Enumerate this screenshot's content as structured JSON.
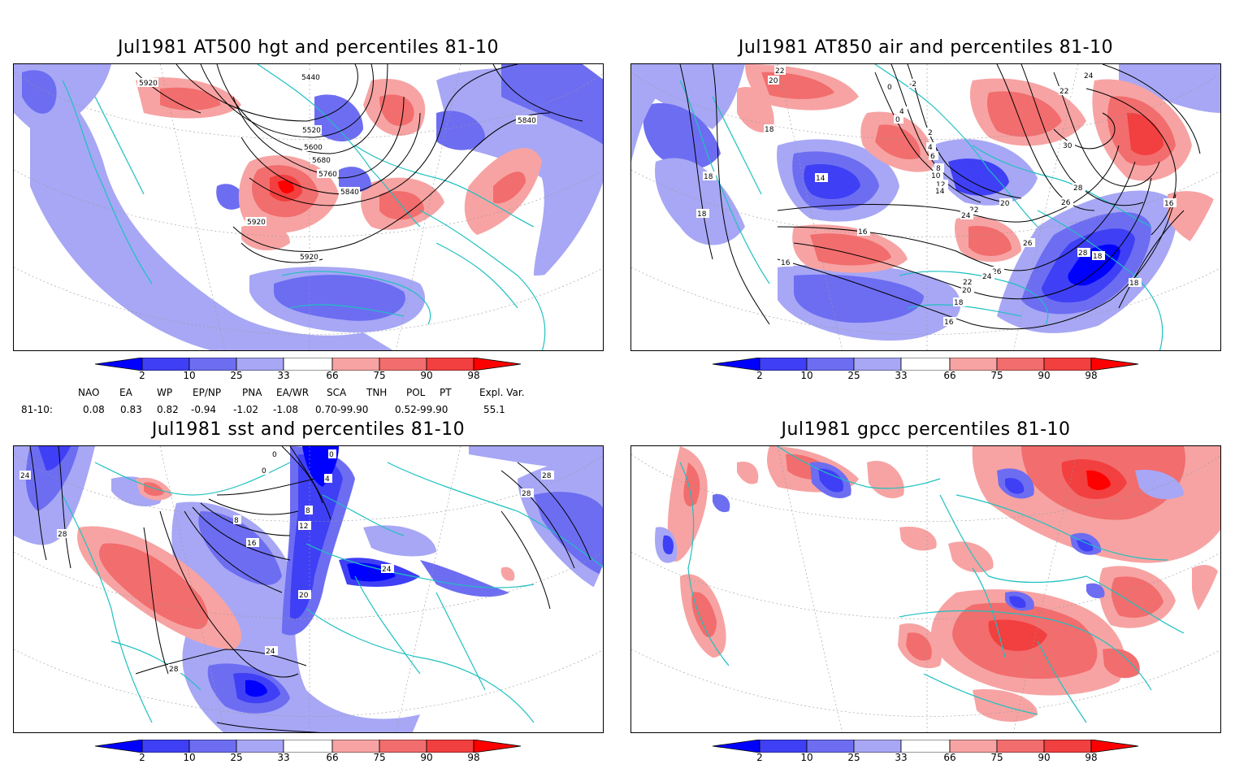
{
  "colors": {
    "blue_98": "#0000ff",
    "blue_90": "#3f3ff5",
    "blue_75": "#6d6df2",
    "blue_light": "#a7a7f5",
    "red_light": "#f7a3a3",
    "red_75": "#f26d6d",
    "red_90": "#f23f3f",
    "red_98": "#ff0000",
    "coast": "#1fc0c0",
    "contour": "#000000"
  },
  "panels": {
    "p1": {
      "title": "Jul1981 AT500 hgt and percentiles 81-10",
      "contour_labels": [
        "5920",
        "5440",
        "5520",
        "5600",
        "5680",
        "5760",
        "5840",
        "5840",
        "5920",
        "5920"
      ]
    },
    "p2": {
      "title": "Jul1981 AT850 air and percentiles 81-10",
      "contour_labels": [
        "22",
        "20",
        "18",
        "-2",
        "0",
        "4",
        "0",
        "2",
        "4",
        "6",
        "8",
        "10",
        "12",
        "14",
        "14",
        "18",
        "18",
        "16",
        "16",
        "20",
        "22",
        "24",
        "26",
        "28",
        "22",
        "24",
        "30",
        "28",
        "26",
        "16",
        "26",
        "24",
        "22",
        "20",
        "18",
        "16",
        "18",
        "18"
      ]
    },
    "p3": {
      "title": "Jul1981 sst and percentiles 81-10",
      "contour_labels": [
        "24",
        "28",
        "0",
        "0",
        "0",
        "4",
        "8",
        "8",
        "12",
        "16",
        "20",
        "24",
        "24",
        "28",
        "28",
        "28"
      ]
    },
    "p4": {
      "title": "Jul1981 gpcc percentiles 81-10",
      "contour_labels": []
    }
  },
  "colorbar": {
    "labels": [
      "2",
      "10",
      "25",
      "33",
      "66",
      "75",
      "90",
      "98"
    ]
  },
  "indices": {
    "headers": [
      "NAO",
      "EA",
      "WP",
      "EP/NP",
      "PNA",
      "EA/WR",
      "SCA",
      "TNH",
      "POL",
      "PT",
      "Expl. Var."
    ],
    "row_label": "81-10:",
    "values": [
      "0.08",
      "0.83",
      "0.82",
      "-0.94",
      "-1.02",
      "-1.08",
      "0.70-99.90",
      "0.52-99.90",
      "55.1"
    ]
  }
}
